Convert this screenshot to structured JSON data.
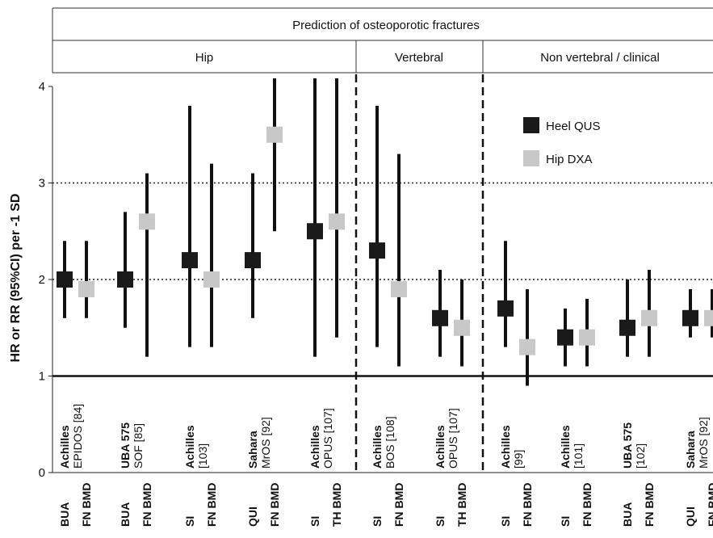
{
  "chart_data": {
    "type": "scatter",
    "header": {
      "title": "Prediction of osteoporotic fractures",
      "groups": [
        "Hip",
        "Vertebral",
        "Non vertebral / clinical"
      ]
    },
    "ylabel": "HR or RR (95%CI) per -1 SD",
    "ylim": [
      0,
      4
    ],
    "yticks": [
      "0",
      "1",
      "2",
      "3",
      "4"
    ],
    "reference_line": 1,
    "dotted_gridlines": [
      2,
      3
    ],
    "legend": {
      "position": "top-right",
      "entries": [
        {
          "name": "Heel QUS",
          "color": "#1a1a1a"
        },
        {
          "name": "Hip DXA",
          "color": "#c8c8c8"
        }
      ]
    },
    "group_separators": "dashed",
    "colors": {
      "heel_qus": "#1a1a1a",
      "hip_dxa": "#c8c8c8"
    },
    "studies": [
      {
        "site": "Achilles",
        "ref": "EPIDOS [84]",
        "group": "Hip"
      },
      {
        "site": "UBA 575",
        "ref": "SOF [85]",
        "group": "Hip"
      },
      {
        "site": "Achilles",
        "ref": "[103]",
        "group": "Hip"
      },
      {
        "site": "Sahara",
        "ref": "MrOS [92]",
        "group": "Hip"
      },
      {
        "site": "Achilles",
        "ref": "OPUS [107]",
        "group": "Hip"
      },
      {
        "site": "Achilles",
        "ref": "BOS [108]",
        "group": "Vertebral"
      },
      {
        "site": "Achilles",
        "ref": "OPUS [107]",
        "group": "Vertebral"
      },
      {
        "site": "Achilles",
        "ref": "[99]",
        "group": "Non vertebral / clinical"
      },
      {
        "site": "Achilles",
        "ref": "[101]",
        "group": "Non vertebral / clinical"
      },
      {
        "site": "UBA 575",
        "ref": "[102]",
        "group": "Non vertebral / clinical"
      },
      {
        "site": "Sahara",
        "ref": "MrOS [92]",
        "group": "Non vertebral / clinical"
      }
    ],
    "points": [
      {
        "study": 0,
        "label": "BUA",
        "series": "Heel QUS",
        "value": 2.0,
        "low": 1.6,
        "high": 2.4
      },
      {
        "study": 0,
        "label": "FN BMD",
        "series": "Hip DXA",
        "value": 1.9,
        "low": 1.6,
        "high": 2.4
      },
      {
        "study": 1,
        "label": "BUA",
        "series": "Heel QUS",
        "value": 2.0,
        "low": 1.5,
        "high": 2.7
      },
      {
        "study": 1,
        "label": "FN BMD",
        "series": "Hip DXA",
        "value": 2.6,
        "low": 1.2,
        "high": 3.1
      },
      {
        "study": 2,
        "label": "SI",
        "series": "Heel QUS",
        "value": 2.2,
        "low": 1.3,
        "high": 3.8
      },
      {
        "study": 2,
        "label": "FN BMD",
        "series": "Hip DXA",
        "value": 2.0,
        "low": 1.3,
        "high": 3.2
      },
      {
        "study": 3,
        "label": "QUI",
        "series": "Heel QUS",
        "value": 2.2,
        "low": 1.6,
        "high": 3.1
      },
      {
        "study": 3,
        "label": "FN BMD",
        "series": "Hip DXA",
        "value": 3.5,
        "low": 2.5,
        "high": 4.1
      },
      {
        "study": 4,
        "label": "SI",
        "series": "Heel QUS",
        "value": 2.5,
        "low": 1.2,
        "high": 4.1
      },
      {
        "study": 4,
        "label": "TH BMD",
        "series": "Hip DXA",
        "value": 2.6,
        "low": 1.4,
        "high": 4.1
      },
      {
        "study": 5,
        "label": "SI",
        "series": "Heel QUS",
        "value": 2.3,
        "low": 1.3,
        "high": 3.8
      },
      {
        "study": 5,
        "label": "FN BMD",
        "series": "Hip DXA",
        "value": 1.9,
        "low": 1.1,
        "high": 3.3
      },
      {
        "study": 6,
        "label": "SI",
        "series": "Heel QUS",
        "value": 1.6,
        "low": 1.2,
        "high": 2.1
      },
      {
        "study": 6,
        "label": "TH BMD",
        "series": "Hip DXA",
        "value": 1.5,
        "low": 1.1,
        "high": 2.0
      },
      {
        "study": 7,
        "label": "SI",
        "series": "Heel QUS",
        "value": 1.7,
        "low": 1.3,
        "high": 2.4
      },
      {
        "study": 7,
        "label": "FN BMD",
        "series": "Hip DXA",
        "value": 1.3,
        "low": 0.9,
        "high": 1.9
      },
      {
        "study": 8,
        "label": "SI",
        "series": "Heel QUS",
        "value": 1.4,
        "low": 1.1,
        "high": 1.7
      },
      {
        "study": 8,
        "label": "FN BMD",
        "series": "Hip DXA",
        "value": 1.4,
        "low": 1.1,
        "high": 1.8
      },
      {
        "study": 9,
        "label": "BUA",
        "series": "Heel QUS",
        "value": 1.5,
        "low": 1.2,
        "high": 2.0
      },
      {
        "study": 9,
        "label": "FN BMD",
        "series": "Hip DXA",
        "value": 1.6,
        "low": 1.2,
        "high": 2.1
      },
      {
        "study": 10,
        "label": "QUI",
        "series": "Heel QUS",
        "value": 1.6,
        "low": 1.4,
        "high": 1.9
      },
      {
        "study": 10,
        "label": "FN BMD",
        "series": "Hip DXA",
        "value": 1.6,
        "low": 1.4,
        "high": 1.9
      }
    ]
  }
}
